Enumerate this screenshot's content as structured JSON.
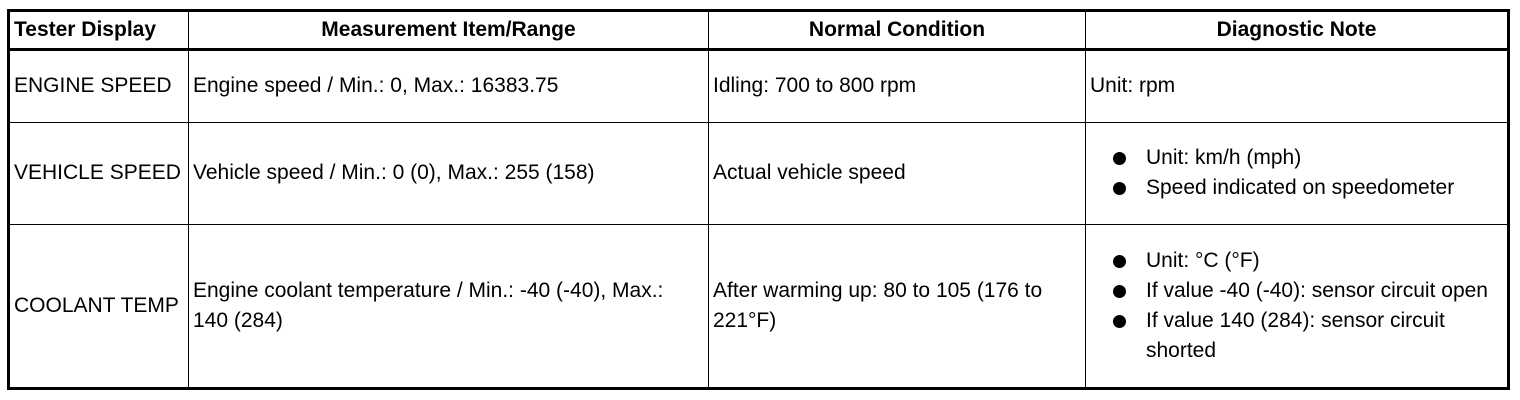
{
  "table": {
    "headers": [
      "Tester Display",
      "Measurement Item/Range",
      "Normal Condition",
      "Diagnostic Note"
    ],
    "rows": [
      {
        "tester_display": "ENGINE SPEED",
        "measurement": "Engine speed / Min.: 0, Max.: 16383.75",
        "normal_condition": "Idling: 700 to 800 rpm",
        "note_text": "Unit: rpm",
        "notes": []
      },
      {
        "tester_display": "VEHICLE SPEED",
        "measurement": "Vehicle speed / Min.: 0 (0), Max.: 255 (158)",
        "normal_condition": "Actual vehicle speed",
        "note_text": "",
        "notes": [
          "Unit: km/h (mph)",
          "Speed indicated on speedometer"
        ]
      },
      {
        "tester_display": "COOLANT TEMP",
        "measurement": "Engine coolant temperature / Min.: -40 (-40), Max.: 140 (284)",
        "normal_condition": "After warming up: 80 to 105 (176 to 221°F)",
        "note_text": "",
        "notes": [
          "Unit: °C (°F)",
          "If value -40 (-40): sensor circuit open",
          "If value 140 (284): sensor circuit shorted"
        ]
      }
    ]
  }
}
